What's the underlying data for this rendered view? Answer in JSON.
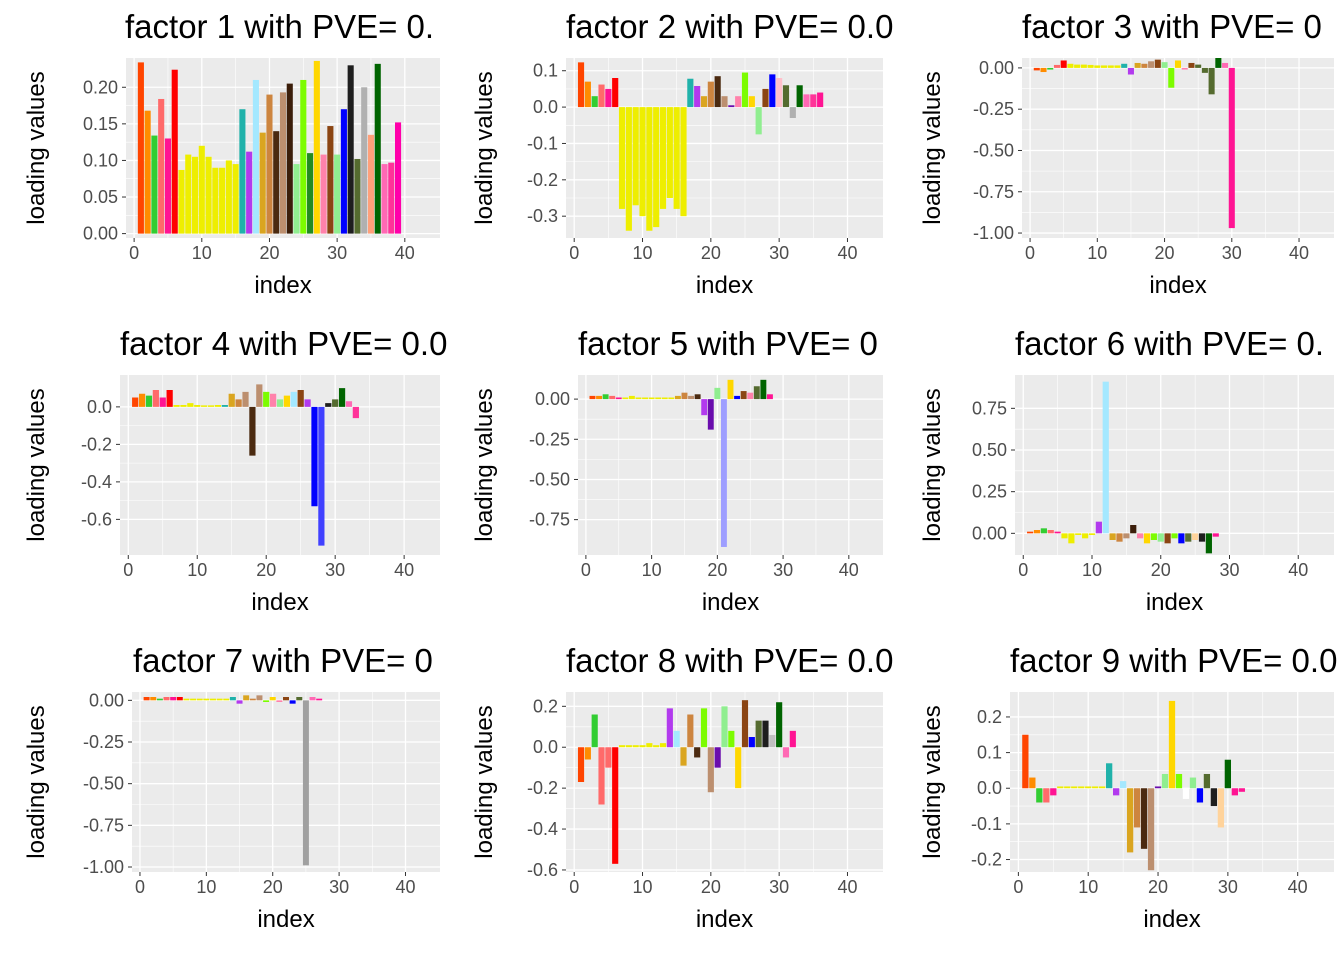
{
  "axis_labels": {
    "x": "index",
    "y": "loading values"
  },
  "chart_data": [
    {
      "type": "bar",
      "title": "factor 1 with PVE= 0.",
      "xlabel": "index",
      "ylabel": "loading values",
      "xlim": [
        -1.2,
        45.2
      ],
      "ylim": [
        -0.006,
        0.24
      ],
      "x_ticks": [
        0,
        10,
        20,
        30,
        40
      ],
      "y_ticks": [
        0,
        0.05,
        0.1,
        0.15,
        0.2
      ],
      "y_tick_labels": [
        "0.00",
        "0.05",
        "0.10",
        "0.15",
        "0.20"
      ],
      "grid": true,
      "values": [
        0.234,
        0.168,
        0.134,
        0.184,
        0.13,
        0.224,
        0.087,
        0.108,
        0.105,
        0.12,
        0.105,
        0.09,
        0.09,
        0.1,
        0.095,
        0.17,
        0.112,
        0.21,
        0.138,
        0.19,
        0.14,
        0.193,
        0.205,
        0.095,
        0.21,
        0.11,
        0.236,
        0.108,
        0.147,
        0.108,
        0.17,
        0.23,
        0.102,
        0.2,
        0.135,
        0.232,
        0.095,
        0.097,
        0.152
      ]
    },
    {
      "type": "bar",
      "title": "factor 2 with PVE= 0.0",
      "xlabel": "index",
      "ylabel": "loading values",
      "xlim": [
        -1.2,
        45.2
      ],
      "ylim": [
        -0.36,
        0.135
      ],
      "x_ticks": [
        0,
        10,
        20,
        30,
        40
      ],
      "y_ticks": [
        -0.3,
        -0.2,
        -0.1,
        0,
        0.1
      ],
      "y_tick_labels": [
        "-0.3",
        "-0.2",
        "-0.1",
        "0.0",
        "0.1"
      ],
      "grid": true,
      "values": [
        0.123,
        0.07,
        0.03,
        0.062,
        0.05,
        0.08,
        -0.28,
        -0.34,
        -0.27,
        -0.3,
        -0.34,
        -0.33,
        -0.28,
        -0.25,
        -0.28,
        -0.3,
        0.078,
        0.058,
        0.03,
        0.07,
        0.085,
        0.03,
        0.005,
        0.03,
        0.095,
        0.03,
        -0.075,
        0.05,
        0.09,
        0.08,
        0.06,
        -0.03,
        0.06,
        0.035,
        0.035,
        0.04
      ]
    },
    {
      "type": "bar",
      "title": "factor 3 with PVE= 0",
      "xlabel": "index",
      "ylabel": "loading values",
      "xlim": [
        -1.2,
        45.2
      ],
      "ylim": [
        -1.03,
        0.06
      ],
      "x_ticks": [
        0,
        10,
        20,
        30,
        40
      ],
      "y_ticks": [
        -1,
        -0.75,
        -0.5,
        -0.25,
        0
      ],
      "y_tick_labels": [
        "-1.00",
        "-0.75",
        "-0.50",
        "-0.25",
        "0.00"
      ],
      "grid": true,
      "values": [
        -0.015,
        -0.025,
        -0.01,
        0.018,
        0.045,
        0.025,
        0.02,
        0.02,
        0.018,
        0.015,
        0.015,
        0.015,
        0.015,
        0.025,
        -0.04,
        0.03,
        0.025,
        0.04,
        0.05,
        0.035,
        -0.12,
        0.045,
        -0.01,
        0.03,
        0.02,
        -0.03,
        -0.16,
        0.06,
        0.03,
        -0.97
      ]
    },
    {
      "type": "bar",
      "title": "factor 4 with PVE= 0.0",
      "xlabel": "index",
      "ylabel": "loading values",
      "xlim": [
        -1.2,
        45.2
      ],
      "ylim": [
        -0.79,
        0.17
      ],
      "x_ticks": [
        0,
        10,
        20,
        30,
        40
      ],
      "y_ticks": [
        -0.6,
        -0.4,
        -0.2,
        0
      ],
      "y_tick_labels": [
        "-0.6",
        "-0.4",
        "-0.2",
        "0.0"
      ],
      "grid": true,
      "values": [
        0.05,
        0.07,
        0.06,
        0.09,
        0.05,
        0.09,
        0.01,
        0.01,
        0.02,
        0.01,
        0.005,
        0.005,
        0.01,
        0.01,
        0.07,
        0.04,
        0.08,
        -0.26,
        0.12,
        0.08,
        0.07,
        0.04,
        0.06,
        0.08,
        0.09,
        0.04,
        -0.53,
        -0.74,
        0.02,
        0.04,
        0.1,
        0.03,
        -0.06
      ]
    },
    {
      "type": "bar",
      "title": "factor 5 with PVE= 0",
      "xlabel": "index",
      "ylabel": "loading values",
      "xlim": [
        -1.2,
        45.2
      ],
      "ylim": [
        -0.97,
        0.15
      ],
      "x_ticks": [
        0,
        10,
        20,
        30,
        40
      ],
      "y_ticks": [
        -0.75,
        -0.5,
        -0.25,
        0
      ],
      "y_tick_labels": [
        "-0.75",
        "-0.50",
        "-0.25",
        "0.00"
      ],
      "grid": true,
      "values": [
        0.02,
        0.02,
        0.03,
        0.02,
        0.01,
        0.01,
        0.02,
        0.01,
        0.01,
        0.01,
        0.01,
        0.01,
        0.01,
        0.02,
        0.04,
        0.02,
        0.03,
        -0.1,
        -0.19,
        0.07,
        -0.92,
        0.12,
        0.02,
        0.05,
        0.04,
        0.08,
        0.12,
        0.03
      ]
    },
    {
      "type": "bar",
      "title": "factor 6 with PVE= 0.",
      "xlabel": "index",
      "ylabel": "loading values",
      "xlim": [
        -1.2,
        45.2
      ],
      "ylim": [
        -0.13,
        0.95
      ],
      "x_ticks": [
        0,
        10,
        20,
        30,
        40
      ],
      "y_ticks": [
        0,
        0.25,
        0.5,
        0.75
      ],
      "y_tick_labels": [
        "0.00",
        "0.25",
        "0.50",
        "0.75"
      ],
      "grid": true,
      "values": [
        0.01,
        0.02,
        0.03,
        0.02,
        0.01,
        -0.03,
        -0.06,
        -0.01,
        -0.03,
        -0.01,
        0.07,
        0.91,
        -0.04,
        -0.05,
        -0.03,
        0.05,
        -0.03,
        -0.06,
        -0.04,
        -0.05,
        -0.06,
        -0.03,
        -0.06,
        -0.05,
        -0.04,
        -0.05,
        -0.12,
        -0.02
      ]
    },
    {
      "type": "bar",
      "title": "factor 7 with PVE= 0",
      "xlabel": "index",
      "ylabel": "loading values",
      "xlim": [
        -1.2,
        45.2
      ],
      "ylim": [
        -1.03,
        0.05
      ],
      "x_ticks": [
        0,
        10,
        20,
        30,
        40
      ],
      "y_ticks": [
        -1,
        -0.75,
        -0.5,
        -0.25,
        0
      ],
      "y_tick_labels": [
        "-1.00",
        "-0.75",
        "-0.50",
        "-0.25",
        "0.00"
      ],
      "grid": true,
      "values": [
        0.02,
        0.02,
        0.01,
        0.02,
        0.02,
        0.02,
        0.01,
        0.01,
        0.01,
        0.01,
        0.01,
        0.01,
        0.01,
        0.02,
        -0.02,
        0.03,
        0.01,
        0.03,
        -0.01,
        0.02,
        -0.01,
        0.02,
        -0.02,
        0.02,
        -0.99,
        0.02,
        0.01
      ]
    },
    {
      "type": "bar",
      "title": "factor 8 with PVE= 0.0",
      "xlabel": "index",
      "ylabel": "loading values",
      "xlim": [
        -1.2,
        45.2
      ],
      "ylim": [
        -0.61,
        0.27
      ],
      "x_ticks": [
        0,
        10,
        20,
        30,
        40
      ],
      "y_ticks": [
        -0.6,
        -0.4,
        -0.2,
        0,
        0.2
      ],
      "y_tick_labels": [
        "-0.6",
        "-0.4",
        "-0.2",
        "0.0",
        "0.2"
      ],
      "grid": true,
      "values": [
        -0.17,
        -0.06,
        0.16,
        -0.28,
        -0.1,
        -0.57,
        0.01,
        0.01,
        0.01,
        0.01,
        0.02,
        0.01,
        0.02,
        0.19,
        0.08,
        -0.09,
        0.16,
        -0.05,
        0.19,
        -0.22,
        -0.1,
        0.2,
        0.08,
        -0.2,
        0.23,
        0.05,
        0.13,
        0.13,
        0.06,
        0.22,
        -0.05,
        0.08
      ]
    },
    {
      "type": "bar",
      "title": "factor 9 with PVE= 0.0",
      "xlabel": "index",
      "ylabel": "loading values",
      "xlim": [
        -1.2,
        45.2
      ],
      "ylim": [
        -0.235,
        0.27
      ],
      "x_ticks": [
        0,
        10,
        20,
        30,
        40
      ],
      "y_ticks": [
        -0.2,
        -0.1,
        0,
        0.1,
        0.2
      ],
      "y_tick_labels": [
        "-0.2",
        "-0.1",
        "0.0",
        "0.1",
        "0.2"
      ],
      "grid": true,
      "values": [
        0.15,
        0.03,
        -0.04,
        -0.04,
        -0.02,
        0.005,
        0.005,
        0.005,
        0.005,
        0.005,
        0.005,
        0.005,
        0.07,
        -0.02,
        0.02,
        -0.18,
        -0.11,
        -0.17,
        -0.23,
        0.005,
        0.04,
        0.245,
        0.04,
        -0.03,
        0.03,
        -0.04,
        0.04,
        -0.05,
        -0.11,
        0.08,
        -0.02,
        -0.01
      ]
    }
  ],
  "bar_colors": [
    [
      "#FF4500",
      "#FF8C00",
      "#32CD32",
      "#FF6A6A",
      "#FF1493",
      "#FF0000",
      "#EEEE00",
      "#EEEE00",
      "#EEEE00",
      "#EEEE00",
      "#EEEE00",
      "#EEEE00",
      "#EEEE00",
      "#EEEE00",
      "#EEEE00",
      "#20B2AA",
      "#B23AEE",
      "#A4E8FF",
      "#DAA520",
      "#CD853F",
      "#4B2A10",
      "#BC8F6F",
      "#3B1E0A",
      "#90EE90",
      "#7CFC00",
      "#228B22",
      "#FFD700",
      "#FF82AB",
      "#8B4513",
      "#90EE90",
      "#0000FF",
      "#1E1E1E",
      "#556B2F",
      "#B0B0B0",
      "#FFA07A",
      "#006400",
      "#FF69B4",
      "#FF3399",
      "#FF00AA"
    ],
    [
      "#FF4500",
      "#FF8C00",
      "#32CD32",
      "#FF6A6A",
      "#FF1493",
      "#FF0000",
      "#EEEE00",
      "#EEEE00",
      "#EEEE00",
      "#EEEE00",
      "#EEEE00",
      "#EEEE00",
      "#EEEE00",
      "#EEEE00",
      "#EEEE00",
      "#EEEE00",
      "#20B2AA",
      "#B23AEE",
      "#DAA520",
      "#CD853F",
      "#4B2A10",
      "#BC8F6F",
      "#6A0DAD",
      "#FF82AB",
      "#7CFC00",
      "#FFD700",
      "#90EE90",
      "#8B4513",
      "#0000FF",
      "#FFC0CB",
      "#556B2F",
      "#B0B0B0",
      "#006400",
      "#FF69B4",
      "#FF3399",
      "#FF1493"
    ],
    [
      "#FF4500",
      "#FF8C00",
      "#32CD32",
      "#FF6A6A",
      "#FF0000",
      "#EEEE00",
      "#EEEE00",
      "#EEEE00",
      "#EEEE00",
      "#EEEE00",
      "#EEEE00",
      "#EEEE00",
      "#EEEE00",
      "#20B2AA",
      "#B23AEE",
      "#DAA520",
      "#CD853F",
      "#BC8F6F",
      "#8B4513",
      "#90EE90",
      "#7CFC00",
      "#FFD700",
      "#FF82AB",
      "#8B4513",
      "#556B2F",
      "#556B2F",
      "#556B2F",
      "#006400",
      "#FF69B4",
      "#FF1493"
    ],
    [
      "#FF4500",
      "#FF8C00",
      "#32CD32",
      "#FF6A6A",
      "#FF1493",
      "#FF0000",
      "#EEEE00",
      "#EEEE00",
      "#EEEE00",
      "#EEEE00",
      "#EEEE00",
      "#EEEE00",
      "#EEEE00",
      "#20B2AA",
      "#DAA520",
      "#CD853F",
      "#BC8F6F",
      "#4B2A10",
      "#BC8F6F",
      "#7CFC00",
      "#FF82AB",
      "#90EE90",
      "#FFD700",
      "#A4E8FF",
      "#8B4513",
      "#B23AEE",
      "#0000FF",
      "#4040FF",
      "#1E1E1E",
      "#556B2F",
      "#006400",
      "#FF69B4",
      "#FF3399"
    ],
    [
      "#FF4500",
      "#FF8C00",
      "#32CD32",
      "#FF6A6A",
      "#FF1493",
      "#EEEE00",
      "#EEEE00",
      "#EEEE00",
      "#EEEE00",
      "#EEEE00",
      "#EEEE00",
      "#EEEE00",
      "#EEEE00",
      "#DAA520",
      "#CD853F",
      "#BC8F6F",
      "#4B2A10",
      "#B23AEE",
      "#6A0DAD",
      "#90EE90",
      "#9E9EFF",
      "#FFD700",
      "#0000FF",
      "#8B4513",
      "#FF82AB",
      "#556B2F",
      "#006400",
      "#FF1493"
    ],
    [
      "#FF4500",
      "#FF8C00",
      "#32CD32",
      "#FF6A6A",
      "#FF1493",
      "#EEEE00",
      "#EEEE00",
      "#EEEE00",
      "#EEEE00",
      "#EEEE00",
      "#B23AEE",
      "#A4E8FF",
      "#DAA520",
      "#CD853F",
      "#BC8F6F",
      "#3B1E0A",
      "#FF82AB",
      "#FFD700",
      "#7CFC00",
      "#90EE90",
      "#8B4513",
      "#7CFC00",
      "#0000FF",
      "#556B2F",
      "#FFD39B",
      "#1E1E1E",
      "#006400",
      "#FF1493"
    ],
    [
      "#FF4500",
      "#FF8C00",
      "#32CD32",
      "#FF6A6A",
      "#FF1493",
      "#FF0000",
      "#EEEE00",
      "#EEEE00",
      "#EEEE00",
      "#EEEE00",
      "#EEEE00",
      "#EEEE00",
      "#EEEE00",
      "#20B2AA",
      "#B23AEE",
      "#DAA520",
      "#CD853F",
      "#BC8F6F",
      "#7CFC00",
      "#FFD700",
      "#FF82AB",
      "#8B4513",
      "#0000FF",
      "#556B2F",
      "#A0A0A0",
      "#FF69B4",
      "#FF1493"
    ],
    [
      "#FF4500",
      "#FF8C00",
      "#32CD32",
      "#FF6A6A",
      "#FF6A6A",
      "#FF0000",
      "#EEEE00",
      "#EEEE00",
      "#EEEE00",
      "#EEEE00",
      "#EEEE00",
      "#EEEE00",
      "#EEEE00",
      "#B23AEE",
      "#A4E8FF",
      "#DAA520",
      "#CD853F",
      "#4B2A10",
      "#7CFC00",
      "#BC8F6F",
      "#6A0DAD",
      "#90EE90",
      "#7CFC00",
      "#FFD700",
      "#8B4513",
      "#0000FF",
      "#556B2F",
      "#1E1E1E",
      "#C0C0C0",
      "#006400",
      "#FF69B4",
      "#FF1493"
    ],
    [
      "#FF4500",
      "#FF8C00",
      "#32CD32",
      "#FF6A6A",
      "#FF1493",
      "#EEEE00",
      "#EEEE00",
      "#EEEE00",
      "#EEEE00",
      "#EEEE00",
      "#EEEE00",
      "#EEEE00",
      "#20B2AA",
      "#B23AEE",
      "#A4E8FF",
      "#DAA520",
      "#CD853F",
      "#4B2A10",
      "#BC8F6F",
      "#6A0DAD",
      "#90EE90",
      "#FFD700",
      "#7CFC00",
      "#FFFFFF",
      "#90EE90",
      "#0000FF",
      "#556B2F",
      "#1E1E1E",
      "#FFD39B",
      "#006400",
      "#FF1493",
      "#FF1493"
    ]
  ],
  "theme": {
    "panel_bg": "#EBEBEB",
    "grid_major": "#FFFFFF",
    "tick_color": "#333333",
    "text_color": "#4D4D4D"
  }
}
